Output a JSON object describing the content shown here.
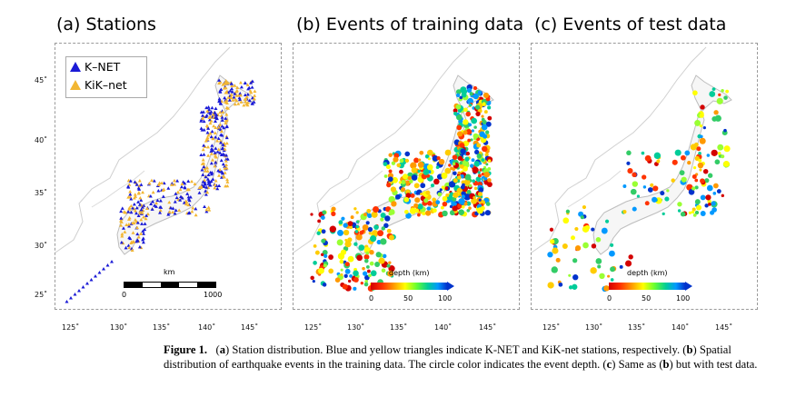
{
  "panels": [
    {
      "title": "(a) Stations"
    },
    {
      "title": "(b) Events of training data"
    },
    {
      "title": "(c) Events of test data"
    }
  ],
  "lat_labels": [
    "45˚",
    "40˚",
    "35˚",
    "30˚",
    "25˚"
  ],
  "lon_labels_a": [
    "125˚",
    "130˚",
    "135˚",
    "140˚",
    "145˚"
  ],
  "lon_labels_b": [
    "125˚",
    "130˚",
    "135˚",
    "140˚",
    "145˚"
  ],
  "lon_labels_c": [
    "125˚",
    "130˚",
    "135˚",
    "140˚",
    "145˚"
  ],
  "legend": {
    "knet": "K–NET",
    "kiknet": "KiK–net",
    "knet_color": "#1a1ad6",
    "kiknet_color": "#f2b632"
  },
  "scale_bar": {
    "unit": "km",
    "min": "0",
    "max": "1000"
  },
  "colorbar": {
    "title": "depth (km)",
    "ticks": [
      "0",
      "50",
      "100"
    ],
    "colors": [
      "#d40000",
      "#ff3300",
      "#ff9900",
      "#ffff00",
      "#66ff33",
      "#00cc99",
      "#0099ff",
      "#0033cc"
    ]
  },
  "caption": {
    "figure_label": "Figure 1.",
    "a_letter": "a",
    "a_text": "Station distribution. Blue and yellow triangles indicate K-NET and KiK-net stations, respectively.",
    "b_letter": "b",
    "b_text": "Spatial distribution of earthquake events in the training data. The circle color indicates the event depth.",
    "c_letter": "c",
    "c_text_pre": "Same as",
    "c_b_letter": "b",
    "c_text_post": "but with test data."
  }
}
